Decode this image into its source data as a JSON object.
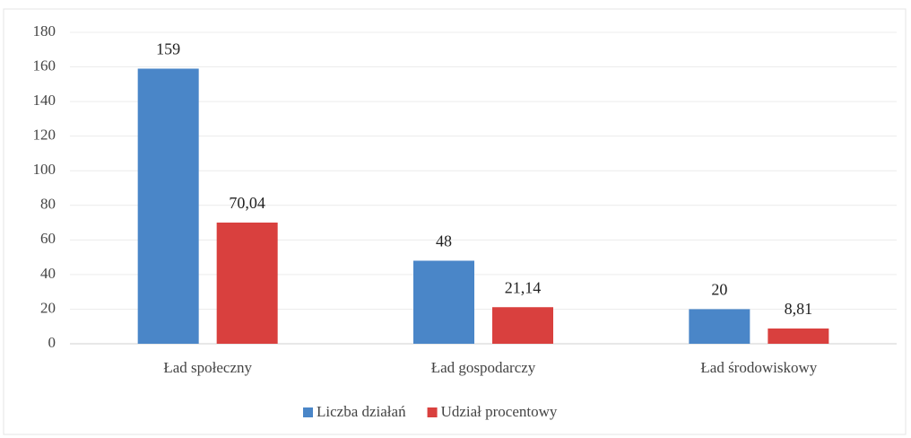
{
  "chart_data": {
    "type": "bar",
    "categories": [
      "Ład społeczny",
      "Ład gospodarczy",
      "Ład środowiskowy"
    ],
    "series": [
      {
        "name": "Liczba działań",
        "color": "#4a86c8",
        "values": [
          159,
          48,
          20
        ]
      },
      {
        "name": "Udział procentowy",
        "color": "#d9403e",
        "values": [
          70.04,
          21.14,
          8.81
        ],
        "value_labels": [
          "70,04",
          "21,14",
          "8,81"
        ]
      }
    ],
    "ylim": [
      0,
      180
    ],
    "yticks": [
      0,
      20,
      40,
      60,
      80,
      100,
      120,
      140,
      160,
      180
    ],
    "grid": true,
    "legend": "bottom"
  }
}
